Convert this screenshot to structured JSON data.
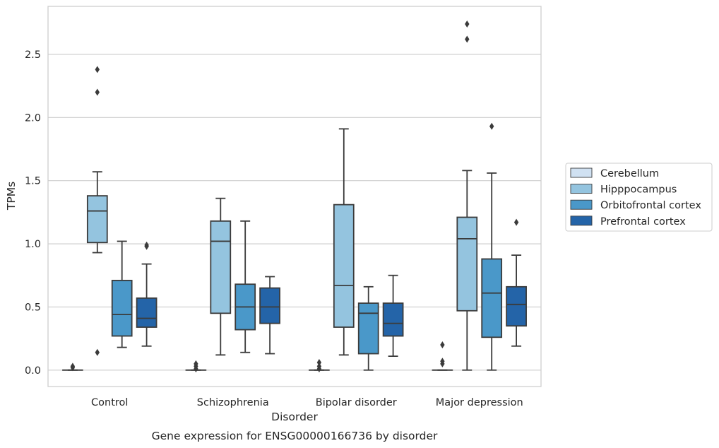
{
  "chart_data": {
    "type": "boxplot",
    "title": "Gene expression for ENSG00000166736 by disorder",
    "xlabel": "Disorder",
    "ylabel": "TPMs",
    "ylim": [
      -0.13,
      2.88
    ],
    "yticks": [
      "0.0",
      "0.5",
      "1.0",
      "1.5",
      "2.0",
      "2.5"
    ],
    "grid": true,
    "legend_position": "right",
    "categories": [
      "Control",
      "Schizophrenia",
      "Bipolar disorder",
      "Major depression"
    ],
    "series": [
      {
        "name": "Cerebellum",
        "color": "#d0e1f2",
        "boxes": [
          {
            "min": 0.0,
            "q1": 0.0,
            "median": 0.0,
            "q3": 0.0,
            "max": 0.0,
            "outliers": [
              0.02,
              0.03
            ]
          },
          {
            "min": 0.0,
            "q1": 0.0,
            "median": 0.0,
            "q3": 0.0,
            "max": 0.0,
            "outliers": [
              0.01,
              0.03,
              0.05
            ]
          },
          {
            "min": 0.0,
            "q1": 0.0,
            "median": 0.0,
            "q3": 0.0,
            "max": 0.0,
            "outliers": [
              0.01,
              0.03,
              0.06
            ]
          },
          {
            "min": 0.0,
            "q1": 0.0,
            "median": 0.0,
            "q3": 0.0,
            "max": 0.0,
            "outliers": [
              0.05,
              0.07,
              0.2
            ]
          }
        ]
      },
      {
        "name": "Hipppocampus",
        "color": "#94c4df",
        "boxes": [
          {
            "min": 0.93,
            "q1": 1.01,
            "median": 1.26,
            "q3": 1.38,
            "max": 1.57,
            "outliers": [
              0.14,
              2.2,
              2.38
            ]
          },
          {
            "min": 0.12,
            "q1": 0.45,
            "median": 1.02,
            "q3": 1.18,
            "max": 1.36,
            "outliers": []
          },
          {
            "min": 0.12,
            "q1": 0.34,
            "median": 0.67,
            "q3": 1.31,
            "max": 1.91,
            "outliers": []
          },
          {
            "min": 0.0,
            "q1": 0.47,
            "median": 1.04,
            "q3": 1.21,
            "max": 1.58,
            "outliers": [
              2.62,
              2.74
            ]
          }
        ]
      },
      {
        "name": "Orbitofrontal cortex",
        "color": "#4a98c9",
        "boxes": [
          {
            "min": 0.18,
            "q1": 0.27,
            "median": 0.44,
            "q3": 0.71,
            "max": 1.02,
            "outliers": []
          },
          {
            "min": 0.14,
            "q1": 0.32,
            "median": 0.5,
            "q3": 0.68,
            "max": 1.18,
            "outliers": []
          },
          {
            "min": 0.0,
            "q1": 0.13,
            "median": 0.45,
            "q3": 0.53,
            "max": 0.66,
            "outliers": []
          },
          {
            "min": 0.0,
            "q1": 0.26,
            "median": 0.61,
            "q3": 0.88,
            "max": 1.56,
            "outliers": [
              1.93
            ]
          }
        ]
      },
      {
        "name": "Prefrontal cortex",
        "color": "#2464a8",
        "boxes": [
          {
            "min": 0.19,
            "q1": 0.34,
            "median": 0.41,
            "q3": 0.57,
            "max": 0.84,
            "outliers": [
              0.98,
              0.99
            ]
          },
          {
            "min": 0.13,
            "q1": 0.37,
            "median": 0.5,
            "q3": 0.65,
            "max": 0.74,
            "outliers": []
          },
          {
            "min": 0.11,
            "q1": 0.27,
            "median": 0.37,
            "q3": 0.53,
            "max": 0.75,
            "outliers": []
          },
          {
            "min": 0.19,
            "q1": 0.35,
            "median": 0.52,
            "q3": 0.66,
            "max": 0.91,
            "outliers": [
              1.17
            ]
          }
        ]
      }
    ]
  }
}
